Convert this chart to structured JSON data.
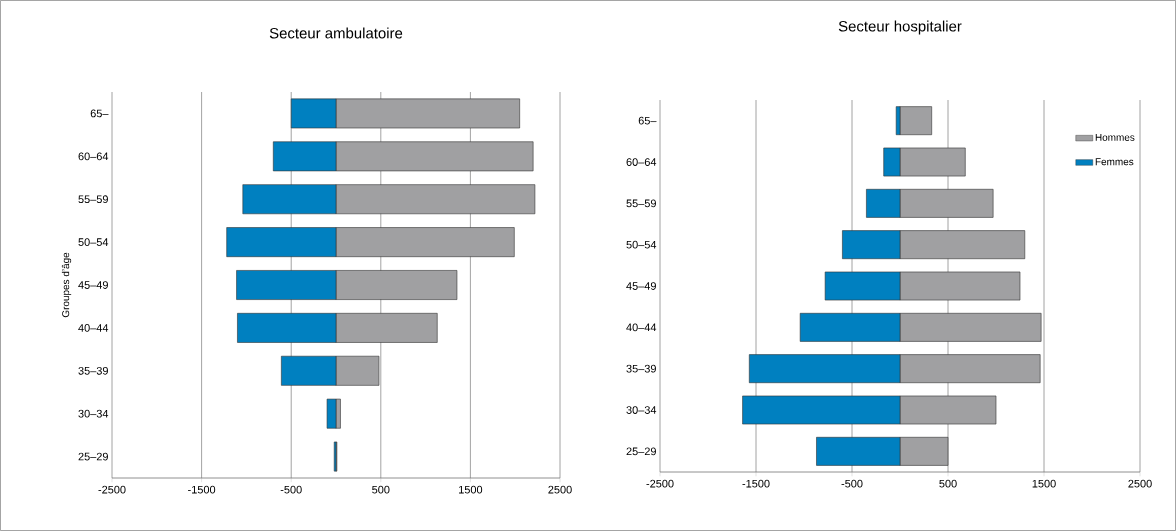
{
  "chart_data": [
    {
      "type": "bar",
      "orientation": "horizontal",
      "stacked": true,
      "title": "Secteur ambulatoire",
      "ylabel": "Groupes d’âge",
      "categories": [
        "65–",
        "60–64",
        "55–59",
        "50–54",
        "45–49",
        "40–44",
        "35–39",
        "30–34",
        "25–29"
      ],
      "series": [
        {
          "color": "#a0a0a2",
          "values": [
            2050,
            2200,
            2220,
            1990,
            1350,
            1130,
            480,
            50,
            10
          ]
        },
        {
          "color": "#0080c0",
          "values": [
            -500,
            -700,
            -1040,
            -1220,
            -1110,
            -1100,
            -610,
            -100,
            -20
          ]
        }
      ],
      "xlim": [
        -2500,
        2500
      ],
      "xticks": [
        -2500,
        -1500,
        -500,
        500,
        1500,
        2500
      ],
      "grid": "x",
      "legend": false
    },
    {
      "type": "bar",
      "orientation": "horizontal",
      "stacked": true,
      "title": "Secteur hospitalier",
      "categories": [
        "65–",
        "60–64",
        "55–59",
        "50–54",
        "45–49",
        "40–44",
        "35–39",
        "30–34",
        "25–29"
      ],
      "series": [
        {
          "name": "Hommes",
          "color": "#a0a0a2",
          "values": [
            330,
            680,
            970,
            1300,
            1250,
            1470,
            1460,
            1000,
            500
          ]
        },
        {
          "name": "Femmes",
          "color": "#0080c0",
          "values": [
            -40,
            -170,
            -350,
            -600,
            -780,
            -1040,
            -1570,
            -1640,
            -870
          ]
        }
      ],
      "xlim": [
        -2500,
        2500
      ],
      "xticks": [
        -2500,
        -1500,
        -500,
        500,
        1500,
        2500
      ],
      "grid": "x",
      "legend": "top right"
    }
  ]
}
